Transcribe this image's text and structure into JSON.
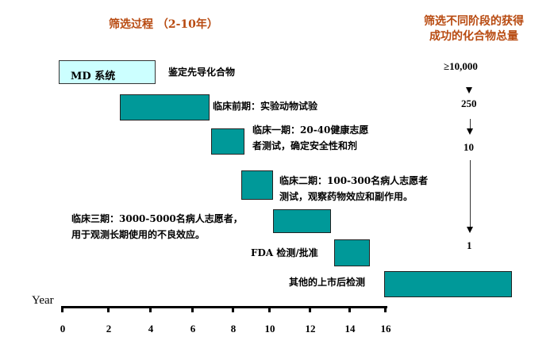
{
  "header": {
    "left_title": "筛选过程 （2-10年）",
    "right_title_line1": "筛选不同阶段的获得",
    "right_title_line2": "成功的化合物总量"
  },
  "phases": [
    {
      "box_label": "MD  系统",
      "label": "鉴定先导化合物",
      "start_year": 0,
      "end_year": 4.3
    },
    {
      "label": "临床前期：实验动物试验",
      "start_year": 2.6,
      "end_year": 6.8
    },
    {
      "label_line1": "临床一期：20-40健康志愿",
      "label_line2": "者测试，确定安全性和剂",
      "start_year": 6.9,
      "end_year": 8.5
    },
    {
      "label_line1": "临床二期：100-300名病人志愿者",
      "label_line2": "测试，观察药物效应和副作用。",
      "start_year": 8.4,
      "end_year": 10.1
    },
    {
      "label_line1": "临床三期：3000-5000名病人志愿者，",
      "label_line2": "用于观测长期使用的不良效应。",
      "start_year": 10.1,
      "end_year": 13.1
    },
    {
      "label": "FDA 检测/批准",
      "start_year": 13.2,
      "end_year": 15.1
    },
    {
      "label": "其他的上市后检测",
      "start_year": 15.9,
      "end_year": 22
    }
  ],
  "compound_counts": [
    "≥10,000",
    "250",
    "10",
    "1"
  ],
  "axis": {
    "label": "Year",
    "ticks": [
      "0",
      "2",
      "4",
      "6",
      "8",
      "10",
      "12",
      "14",
      "16"
    ]
  },
  "colors": {
    "bar": "#009999",
    "md_box": "#ccffff",
    "title": "#b84a10"
  }
}
